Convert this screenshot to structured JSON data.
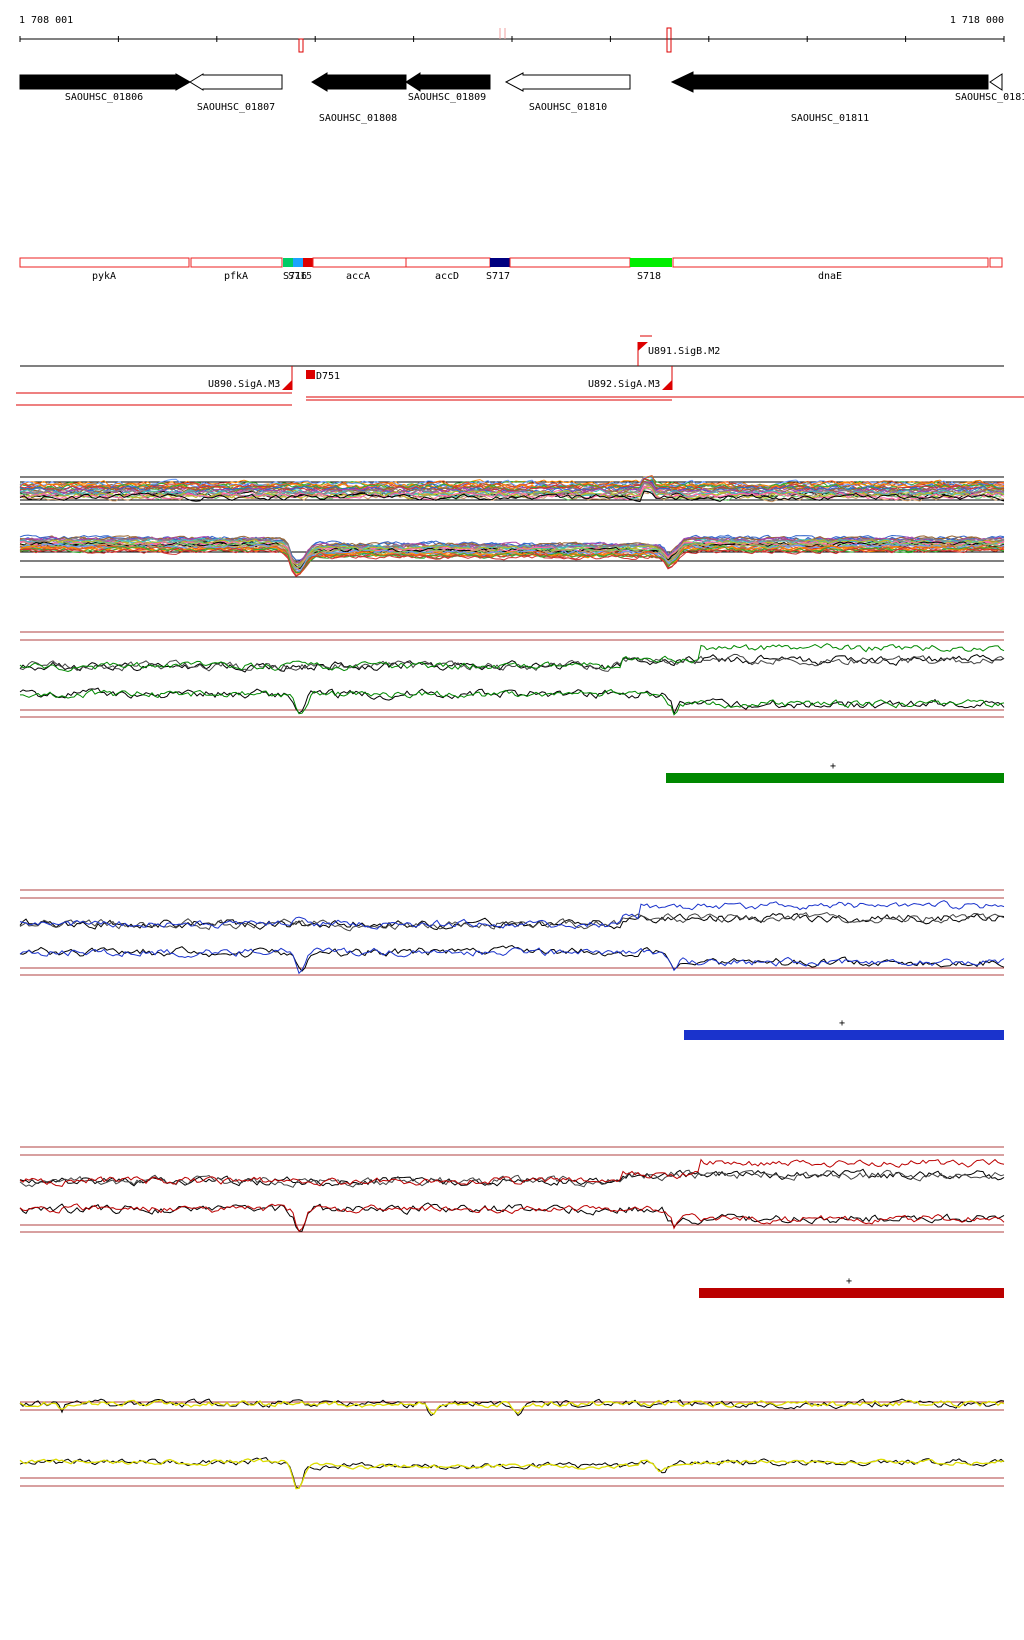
{
  "ruler": {
    "start_label": "1 708 001",
    "end_label": "1 718 000"
  },
  "genes": [
    {
      "name": "SAOUHSC_01806",
      "strand": "+",
      "filled": true
    },
    {
      "name": "SAOUHSC_01807",
      "strand": "+",
      "filled": false
    },
    {
      "name": "SAOUHSC_01808",
      "strand": "-",
      "filled": true
    },
    {
      "name": "SAOUHSC_01809",
      "strand": "-",
      "filled": true
    },
    {
      "name": "SAOUHSC_01810",
      "strand": "-",
      "filled": false
    },
    {
      "name": "SAOUHSC_01811",
      "strand": "-",
      "filled": true
    },
    {
      "name": "SAOUHSC_0181",
      "strand": "-",
      "filled": false
    }
  ],
  "features": [
    {
      "name": "pykA"
    },
    {
      "name": "pfkA"
    },
    {
      "name": "S716"
    },
    {
      "name": "S715"
    },
    {
      "name": "accA"
    },
    {
      "name": "accD"
    },
    {
      "name": "S717"
    },
    {
      "name": "S718"
    },
    {
      "name": "dnaE"
    }
  ],
  "feature_colors": {
    "S716": "#00cc66",
    "S715": "#1aa3ff",
    "S715b": "#dd0000",
    "S717": "#000080",
    "S718": "#00ee00",
    "outline": "#ee2222"
  },
  "promoters": [
    {
      "name": "U890.SigA.M3"
    },
    {
      "name": "U891.SigB.M2"
    },
    {
      "name": "U892.SigA.M3"
    },
    {
      "name": "D751"
    }
  ],
  "tracks": {
    "multi_color": "#mixed",
    "green": "#008800",
    "blue": "#1a33cc",
    "red": "#bb0000",
    "yellow": "#dddd00",
    "black": "#000000",
    "guide": "#b04040"
  },
  "segments": [
    {
      "name": "green-segment",
      "label": "+"
    },
    {
      "name": "blue-segment",
      "label": "+"
    },
    {
      "name": "red-segment",
      "label": "+"
    }
  ]
}
